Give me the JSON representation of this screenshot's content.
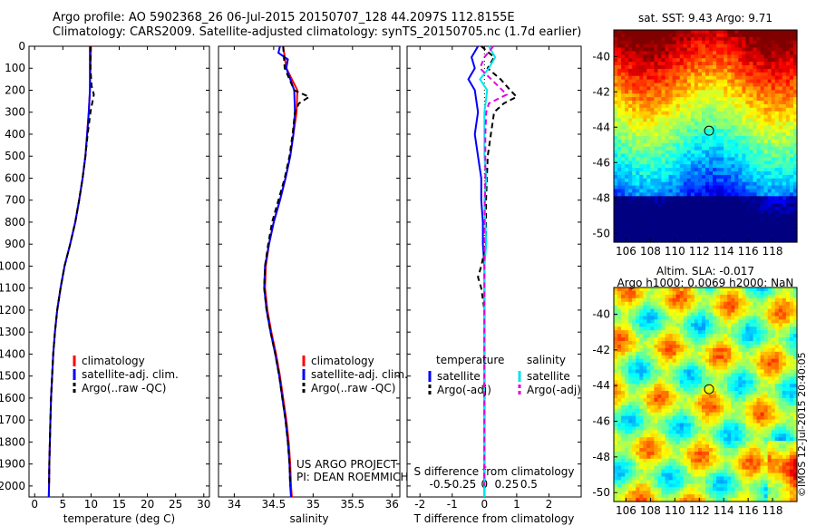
{
  "header": {
    "line1": "Argo profile: AO 5902368_26 06-Jul-2015 20150707_128 44.2097S 112.8155E",
    "line2": "Climatology: CARS2009. Satellite-adjusted climatology: synTS_20150705.nc (1.7d earlier)"
  },
  "colors": {
    "climatology": "#ff0000",
    "satellite": "#0000ff",
    "argo": "#000000",
    "salinity_satellite": "#00e5ee",
    "salinity_argo": "#e000e0"
  },
  "chart_data": [
    {
      "id": "temperature",
      "type": "line",
      "xlabel": "temperature (deg C)",
      "ylabel": "",
      "xlim": [
        -1,
        31
      ],
      "ylim": [
        2050,
        0
      ],
      "xticks": [
        "0",
        "5",
        "10",
        "15",
        "20",
        "25",
        "30"
      ],
      "xtick_values": [
        0,
        5,
        10,
        15,
        20,
        25,
        30
      ],
      "yticks": [
        "0",
        "100",
        "200",
        "300",
        "400",
        "500",
        "600",
        "700",
        "800",
        "900",
        "1000",
        "1100",
        "1200",
        "1300",
        "1400",
        "1500",
        "1600",
        "1700",
        "1800",
        "1900",
        "2000"
      ],
      "legend": [
        "climatology",
        "satellite-adj. clim.",
        "Argo(..raw -QC)"
      ],
      "series": [
        {
          "name": "climatology",
          "style": "solid",
          "color": "#ff0000",
          "depth": [
            0,
            100,
            200,
            300,
            400,
            500,
            600,
            700,
            800,
            900,
            1000,
            1100,
            1200,
            1300,
            1400,
            1500,
            1600,
            1700,
            1800,
            1900,
            2000,
            2050
          ],
          "values": [
            10.0,
            9.9,
            9.8,
            9.6,
            9.3,
            9.0,
            8.5,
            7.9,
            7.2,
            6.3,
            5.3,
            4.6,
            4.0,
            3.6,
            3.3,
            3.1,
            2.9,
            2.8,
            2.7,
            2.6,
            2.55,
            2.5
          ]
        },
        {
          "name": "satellite-adj. clim.",
          "style": "solid",
          "color": "#0000ff",
          "depth": [
            0,
            100,
            200,
            300,
            400,
            500,
            600,
            700,
            800,
            900,
            1000,
            1100,
            1200,
            1300,
            1400,
            1500,
            1600,
            1700,
            1800,
            1900,
            2000,
            2050
          ],
          "values": [
            9.8,
            9.8,
            9.8,
            9.6,
            9.3,
            9.0,
            8.5,
            7.9,
            7.2,
            6.3,
            5.3,
            4.6,
            4.0,
            3.6,
            3.3,
            3.1,
            2.9,
            2.8,
            2.7,
            2.6,
            2.55,
            2.5
          ]
        },
        {
          "name": "Argo(..raw -QC)",
          "style": "dash",
          "color": "#000000",
          "depth": [
            0,
            100,
            180,
            220,
            260,
            300,
            400,
            500,
            600,
            700,
            800,
            900,
            1000,
            1100,
            1200,
            1300,
            1400,
            1500,
            1600,
            1700,
            1800,
            1900,
            2000
          ],
          "values": [
            9.9,
            9.9,
            10.1,
            10.5,
            10.2,
            9.9,
            9.4,
            9.0,
            8.5,
            7.9,
            7.2,
            6.3,
            5.3,
            4.6,
            4.0,
            3.6,
            3.3,
            3.1,
            2.9,
            2.8,
            2.7,
            2.6,
            2.55
          ]
        }
      ]
    },
    {
      "id": "salinity",
      "type": "line",
      "xlabel": "salinity",
      "ylabel": "",
      "xlim": [
        33.8,
        36.1
      ],
      "ylim": [
        2050,
        0
      ],
      "xticks": [
        "34",
        "34.5",
        "35",
        "35.5",
        "36"
      ],
      "xtick_values": [
        34,
        34.5,
        35,
        35.5,
        36
      ],
      "legend": [
        "climatology",
        "satellite-adj. clim.",
        "Argo(..raw -QC)"
      ],
      "annotation": [
        "US ARGO PROJECT",
        "PI: DEAN ROEMMICH"
      ],
      "series": [
        {
          "name": "climatology",
          "style": "solid",
          "color": "#ff0000",
          "depth": [
            0,
            100,
            200,
            300,
            400,
            500,
            600,
            700,
            800,
            900,
            1000,
            1100,
            1200,
            1300,
            1400,
            1500,
            1600,
            1700,
            1800,
            1900,
            2000,
            2050
          ],
          "values": [
            34.62,
            34.66,
            34.8,
            34.79,
            34.75,
            34.71,
            34.65,
            34.58,
            34.5,
            34.44,
            34.4,
            34.39,
            34.42,
            34.47,
            34.53,
            34.58,
            34.62,
            34.66,
            34.69,
            34.71,
            34.72,
            34.73
          ]
        },
        {
          "name": "satellite-adj. clim.",
          "style": "solid",
          "color": "#0000ff",
          "depth": [
            0,
            30,
            60,
            100,
            200,
            300,
            400,
            500,
            600,
            700,
            800,
            900,
            1000,
            1100,
            1200,
            1300,
            1400,
            1500,
            1600,
            1700,
            1800,
            1900,
            2000,
            2050
          ],
          "values": [
            34.58,
            34.56,
            34.68,
            34.66,
            34.76,
            34.77,
            34.75,
            34.71,
            34.65,
            34.58,
            34.5,
            34.44,
            34.39,
            34.38,
            34.41,
            34.46,
            34.52,
            34.57,
            34.61,
            34.65,
            34.68,
            34.7,
            34.71,
            34.72
          ]
        },
        {
          "name": "Argo(..raw -QC)",
          "style": "dash",
          "color": "#000000",
          "depth": [
            0,
            100,
            200,
            230,
            260,
            300,
            400,
            500,
            600,
            700,
            800,
            900,
            1000,
            1100,
            1200,
            1300,
            1400,
            1500,
            1600,
            1700,
            1800,
            1900,
            2000
          ],
          "values": [
            34.62,
            34.64,
            34.76,
            34.95,
            34.82,
            34.77,
            34.74,
            34.7,
            34.64,
            34.56,
            34.48,
            34.43,
            34.39,
            34.38,
            34.41,
            34.46,
            34.52,
            34.57,
            34.61,
            34.65,
            34.68,
            34.7,
            34.71
          ]
        }
      ]
    },
    {
      "id": "difference",
      "type": "line",
      "xlabel": "T difference from climatology",
      "xlabel2": "S difference from climatology",
      "xlim": [
        -2.4,
        3.0
      ],
      "ylim": [
        2050,
        0
      ],
      "xticks": [
        "-2",
        "-1",
        "0",
        "1",
        "2"
      ],
      "xtick_values": [
        -2,
        -1,
        0,
        1,
        2
      ],
      "xticks2": [
        "-0.5",
        "-0.25",
        "0",
        "0.25",
        "0.5"
      ],
      "xtick2_values": [
        -0.5,
        -0.25,
        0,
        0.25,
        0.5
      ],
      "legend_temperature": {
        "title": "temperature",
        "items": [
          "satellite",
          "Argo(-adj)"
        ]
      },
      "legend_salinity": {
        "title": "salinity",
        "items": [
          "satellite",
          "Argo(-adj)"
        ]
      },
      "series": [
        {
          "name": "temperature satellite",
          "style": "solid",
          "color": "#0000ff",
          "depth": [
            0,
            50,
            100,
            150,
            200,
            300,
            400,
            500,
            600,
            700,
            800,
            900,
            1000,
            1200,
            1500,
            1800,
            2050
          ],
          "values": [
            -0.2,
            -0.4,
            -0.3,
            -0.5,
            -0.3,
            -0.2,
            -0.3,
            -0.2,
            -0.1,
            -0.1,
            -0.05,
            -0.05,
            0,
            0,
            0,
            0,
            0
          ]
        },
        {
          "name": "temperature Argo(-adj)",
          "style": "dash",
          "color": "#000000",
          "depth": [
            0,
            50,
            100,
            150,
            200,
            230,
            260,
            300,
            400,
            500,
            700,
            900,
            1000,
            1050,
            1100,
            1200,
            1500,
            1800,
            2000
          ],
          "values": [
            -0.1,
            0.3,
            0.1,
            0.5,
            0.8,
            1.0,
            0.6,
            0.3,
            0.2,
            0.1,
            0.05,
            0.05,
            -0.1,
            -0.2,
            -0.1,
            0,
            0,
            0,
            0
          ]
        },
        {
          "name": "salinity satellite",
          "style": "solid",
          "color": "#00e5ee",
          "depth": [
            0,
            50,
            100,
            150,
            200,
            300,
            400,
            500,
            600,
            700,
            800,
            900,
            1000,
            1200,
            1500,
            1800,
            2050
          ],
          "values": [
            0.05,
            0.12,
            0.05,
            -0.05,
            0.03,
            0,
            0,
            0,
            0.02,
            0,
            0.01,
            0.02,
            0,
            0,
            0,
            0,
            0
          ]
        },
        {
          "name": "salinity Argo(-adj)",
          "style": "dash",
          "color": "#e000e0",
          "depth": [
            0,
            50,
            100,
            180,
            220,
            260,
            300,
            400,
            600,
            800,
            1000,
            1200,
            1500,
            1800,
            2000
          ],
          "values": [
            0.1,
            0.0,
            -0.05,
            0.15,
            0.25,
            0.05,
            0.02,
            0.01,
            0.01,
            0,
            0,
            0,
            0,
            0,
            0
          ]
        }
      ]
    },
    {
      "id": "sst-map",
      "type": "heatmap",
      "title": "sat. SST: 9.43 Argo: 9.71",
      "xticks": [
        "106",
        "108",
        "110",
        "112",
        "114",
        "116",
        "118"
      ],
      "xtick_values": [
        106,
        108,
        110,
        112,
        114,
        116,
        118
      ],
      "yticks": [
        "-40",
        "-42",
        "-44",
        "-46",
        "-48",
        "-50"
      ],
      "ytick_values": [
        -40,
        -42,
        -44,
        -46,
        -48,
        -50
      ],
      "xlim": [
        105,
        120
      ],
      "ylim": [
        -50.5,
        -38.5
      ],
      "marker": {
        "lon": 112.8,
        "lat": -44.2
      }
    },
    {
      "id": "sla-map",
      "type": "heatmap",
      "title": "Altim. SLA: -0.017",
      "subtitle": "Argo h1000: 0.0069 h2000: NaN",
      "xticks": [
        "106",
        "108",
        "110",
        "112",
        "114",
        "116",
        "118"
      ],
      "xtick_values": [
        106,
        108,
        110,
        112,
        114,
        116,
        118
      ],
      "yticks": [
        "-40",
        "-42",
        "-44",
        "-46",
        "-48",
        "-50"
      ],
      "ytick_values": [
        -40,
        -42,
        -44,
        -46,
        -48,
        -50
      ],
      "xlim": [
        105,
        120
      ],
      "ylim": [
        -50.5,
        -38.5
      ],
      "marker": {
        "lon": 112.8,
        "lat": -44.2
      }
    }
  ],
  "watermark": "©IMOS 12-Jul-2015 20:40:05"
}
